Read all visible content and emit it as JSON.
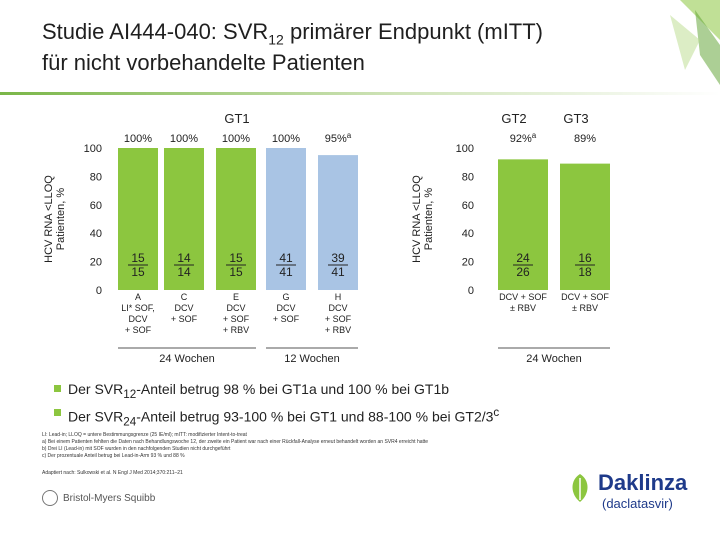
{
  "title": {
    "line1_pre": "Studie AI444-040: SVR",
    "line1_sub": "12",
    "line1_post": " primärer Endpunkt (mITT)",
    "line2": "für nicht vorbehandelte Patienten"
  },
  "chart_data": [
    {
      "type": "bar",
      "group_label": "GT1",
      "ylabel_lines": [
        "HCV RNA <LLOQ",
        "Patienten, %"
      ],
      "ylim": [
        0,
        100
      ],
      "yticks": [
        0,
        20,
        40,
        60,
        80,
        100
      ],
      "categories": [
        "A LI* SOF, DCV + SOF",
        "C DCV + SOF",
        "E DCV + SOF + RBV",
        "G DCV + SOF",
        "H DCV + SOF + RBV"
      ],
      "bar_labels": [
        [
          "A",
          "LI* SOF,",
          "DCV",
          "+ SOF"
        ],
        [
          "C",
          "DCV",
          "+ SOF"
        ],
        [
          "E",
          "DCV",
          "+ SOF",
          "+ RBV"
        ],
        [
          "G",
          "DCV",
          "+ SOF"
        ],
        [
          "H",
          "DCV",
          "+ SOF",
          "+ RBV"
        ]
      ],
      "values": [
        100,
        100,
        100,
        100,
        95
      ],
      "value_labels": [
        "100%",
        "100%",
        "100%",
        "100%",
        "95%"
      ],
      "value_superscripts": [
        "",
        "",
        "",
        "",
        "a"
      ],
      "fractions": [
        [
          "15",
          "15"
        ],
        [
          "14",
          "14"
        ],
        [
          "15",
          "15"
        ],
        [
          "41",
          "41"
        ],
        [
          "39",
          "41"
        ]
      ],
      "bar_colors": [
        "#8cc63f",
        "#8cc63f",
        "#8cc63f",
        "#a9c4e4",
        "#a9c4e4"
      ],
      "sublabels": [
        {
          "text": "24 Wochen",
          "bars": [
            0,
            2
          ]
        },
        {
          "text": "12 Wochen",
          "bars": [
            3,
            4
          ]
        }
      ]
    },
    {
      "type": "bar",
      "group_labels": [
        "GT2",
        "GT3"
      ],
      "ylabel_lines": [
        "HCV RNA <LLOQ",
        "Patienten, %"
      ],
      "ylim": [
        0,
        100
      ],
      "yticks": [
        0,
        20,
        40,
        60,
        80,
        100
      ],
      "categories": [
        "DCV + SOF ± RBV",
        "DCV + SOF ± RBV"
      ],
      "bar_labels": [
        [
          "DCV + SOF",
          "± RBV"
        ],
        [
          "DCV + SOF",
          "± RBV"
        ]
      ],
      "values": [
        92,
        89
      ],
      "value_labels": [
        "92%",
        "89%"
      ],
      "value_superscripts": [
        "a",
        ""
      ],
      "fractions": [
        [
          "24",
          "26"
        ],
        [
          "16",
          "18"
        ]
      ],
      "bar_colors": [
        "#8cc63f",
        "#8cc63f"
      ],
      "sublabels": [
        {
          "text": "24 Wochen",
          "bars": [
            0,
            1
          ]
        }
      ]
    }
  ],
  "bullets": [
    {
      "pre": "Der SVR",
      "sub": "12",
      "post": "-Anteil betrug 98 % bei GT1a und 100 % bei GT1b"
    },
    {
      "pre": "Der SVR",
      "sub": "24",
      "post": "-Anteil betrug 93-100 % bei GT1 und 88-100 % bei GT2/3",
      "sup": "c"
    }
  ],
  "footnotes": [
    "LI: Lead-in; LLOQ = untere Bestimmungsgrenze (25 IE/ml); mITT: modifizierter Intent-to-treat",
    "a) Bei einem Patienten fehlten die Daten nach Behandlungswoche 12, der zweite ein Patient war nach einer Rückfall-Analyse erneut behandelt worden an SVR4 erreicht hatte",
    "b) Drei LI (Lead-in) mit SOF wurden in den nachfolgenden Studien nicht durchgeführt",
    "c) Der prozentuale Anteil betrug bei Lead-in-Arm 93 % und 88 %"
  ],
  "source": "Adaptiert nach: Sulkowski et al. N Engl J Med 2014;370:211–21",
  "brand": {
    "company": "Bristol-Myers Squibb",
    "product": "Daklinza",
    "product_sub": "(daclatasvir)"
  }
}
